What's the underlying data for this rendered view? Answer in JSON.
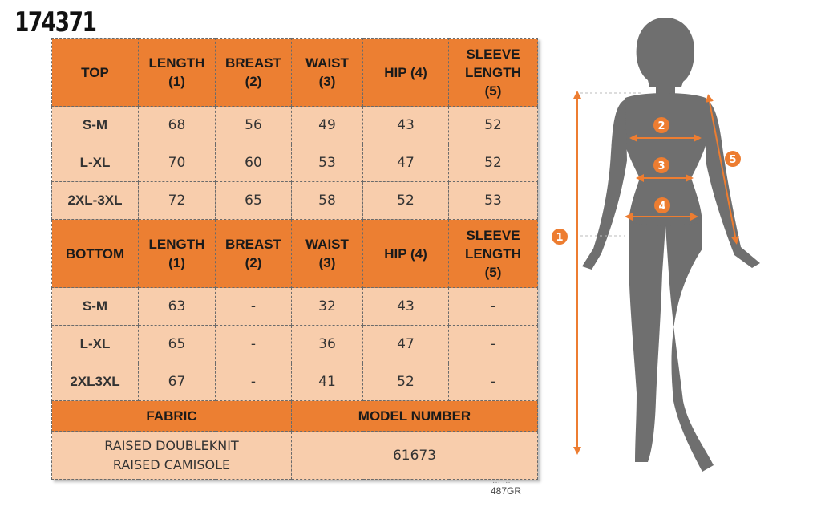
{
  "product_code": "174371",
  "top": {
    "headers": [
      "TOP",
      "LENGTH\n(1)",
      "BREAST\n(2)",
      "WAIST\n(3)",
      "HIP (4)",
      "SLEEVE\nLENGTH\n(5)"
    ],
    "rows": [
      [
        "S-M",
        "68",
        "56",
        "49",
        "43",
        "52"
      ],
      [
        "L-XL",
        "70",
        "60",
        "53",
        "47",
        "52"
      ],
      [
        "2XL-3XL",
        "72",
        "65",
        "58",
        "52",
        "53"
      ]
    ]
  },
  "bottom": {
    "headers": [
      "BOTTOM",
      "LENGTH\n(1)",
      "BREAST\n(2)",
      "WAIST\n(3)",
      "HIP (4)",
      "SLEEVE\nLENGTH\n(5)"
    ],
    "rows": [
      [
        "S-M",
        "63",
        "-",
        "32",
        "43",
        "-"
      ],
      [
        "L-XL",
        "65",
        "-",
        "36",
        "47",
        "-"
      ],
      [
        "2XL3XL",
        "67",
        "-",
        "41",
        "52",
        "-"
      ]
    ]
  },
  "info": {
    "fabric_header": "FABRIC",
    "model_header": "MODEL NUMBER",
    "fabric_lines": [
      "RAISED DOUBLEKNIT",
      "RAISED CAMISOLE"
    ],
    "model_number": "61673"
  },
  "footnote": "487GR",
  "figure_markers": [
    "1",
    "2",
    "3",
    "4",
    "5"
  ],
  "colors": {
    "header_orange": "#ec7f32",
    "cell_peach": "#f8cdac",
    "marker_orange": "#ed7d31",
    "silhouette": "#6f6f6f"
  }
}
